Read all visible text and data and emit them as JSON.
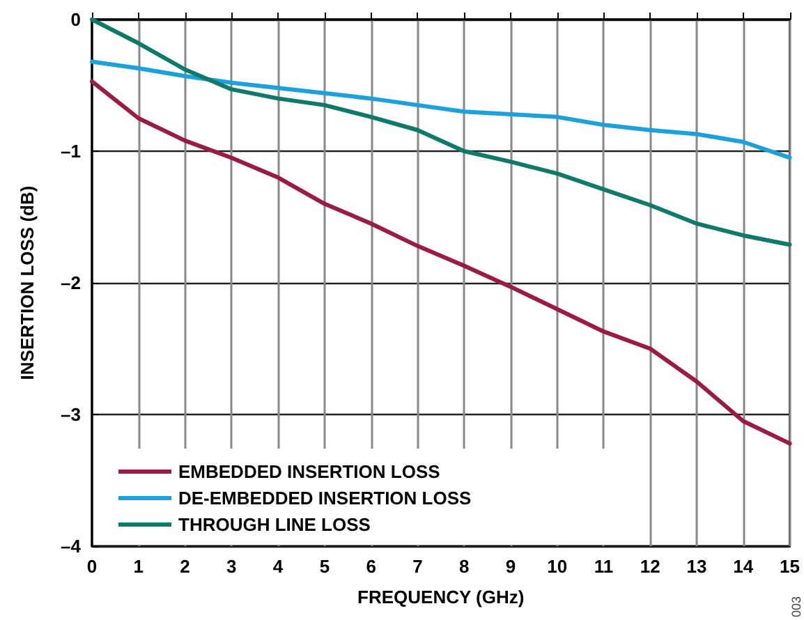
{
  "chart_data": {
    "type": "line",
    "xlabel": "FREQUENCY (GHz)",
    "ylabel": "INSERTION LOSS (dB)",
    "annotations": [
      "003"
    ],
    "x": [
      0,
      1,
      2,
      3,
      4,
      5,
      6,
      7,
      8,
      9,
      10,
      11,
      12,
      13,
      14,
      15
    ],
    "series": [
      {
        "name": "EMBEDDED INSERTION LOSS",
        "color": "#9b1b45",
        "values": [
          -0.47,
          -0.75,
          -0.92,
          -1.05,
          -1.2,
          -1.4,
          -1.55,
          -1.72,
          -1.87,
          -2.03,
          -2.2,
          -2.37,
          -2.5,
          -2.75,
          -3.05,
          -3.22
        ]
      },
      {
        "name": "DE-EMBEDDED INSERTION LOSS",
        "color": "#1ba1dc",
        "values": [
          -0.32,
          -0.37,
          -0.43,
          -0.48,
          -0.52,
          -0.56,
          -0.6,
          -0.65,
          -0.7,
          -0.72,
          -0.74,
          -0.8,
          -0.84,
          -0.87,
          -0.93,
          -1.05
        ]
      },
      {
        "name": "THROUGH LINE LOSS",
        "color": "#0e7a6a",
        "values": [
          0,
          -0.18,
          -0.38,
          -0.53,
          -0.6,
          -0.65,
          -0.74,
          -0.84,
          -1.0,
          -1.08,
          -1.17,
          -1.29,
          -1.41,
          -1.55,
          -1.64,
          -1.71
        ]
      }
    ],
    "xlim": [
      0,
      15
    ],
    "xticks": [
      0,
      1,
      2,
      3,
      4,
      5,
      6,
      7,
      8,
      9,
      10,
      11,
      12,
      13,
      14,
      15
    ],
    "ylim": [
      -4,
      0
    ],
    "yticks": [
      {
        "value": -4,
        "label": "–4"
      },
      {
        "value": -3,
        "label": "–3"
      },
      {
        "value": -2,
        "label": "–2"
      },
      {
        "value": -1,
        "label": "–1"
      },
      0
    ],
    "grid": true,
    "legend": "bottom left",
    "marker": "none",
    "line_style": "solid"
  }
}
